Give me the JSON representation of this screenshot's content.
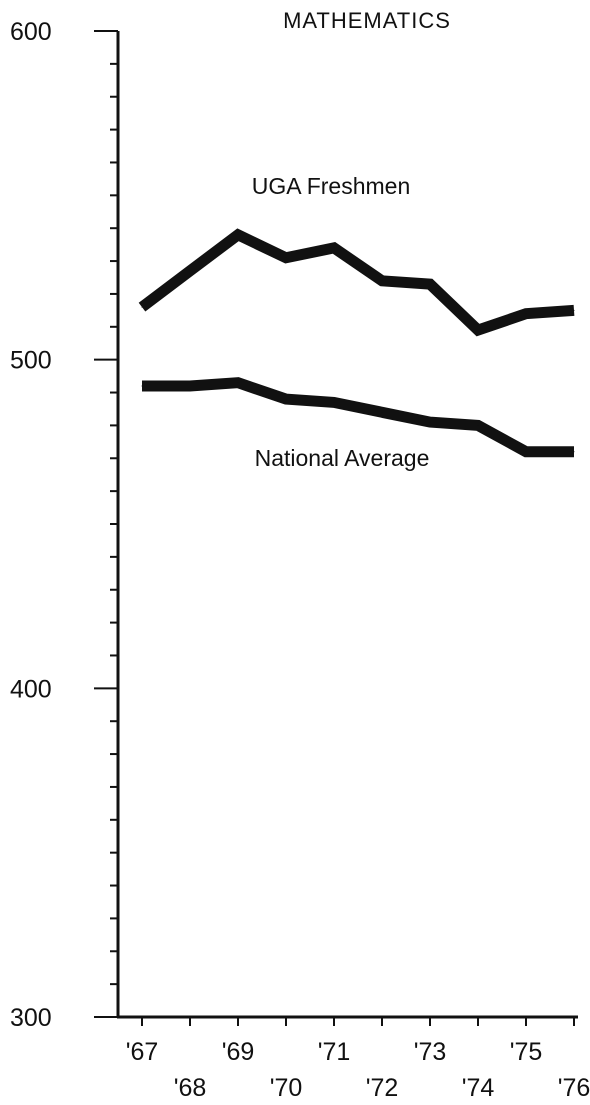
{
  "chart_data": {
    "type": "line",
    "title": "MATHEMATICS",
    "xlabel": "",
    "ylabel": "",
    "ylim": [
      300,
      600
    ],
    "y_ticks": [
      300,
      400,
      500,
      600
    ],
    "y_minor_step": 10,
    "x": [
      "'67",
      "'68",
      "'69",
      "'70",
      "'71",
      "'72",
      "'73",
      "'74",
      "'75",
      "'76"
    ],
    "series": [
      {
        "name": "UGA Freshmen",
        "values": [
          516,
          527,
          538,
          531,
          534,
          524,
          523,
          509,
          514,
          515
        ]
      },
      {
        "name": "National Average",
        "values": [
          492,
          492,
          493,
          488,
          487,
          484,
          481,
          480,
          472,
          472
        ]
      }
    ],
    "grid": false,
    "line_color": "#111111"
  }
}
